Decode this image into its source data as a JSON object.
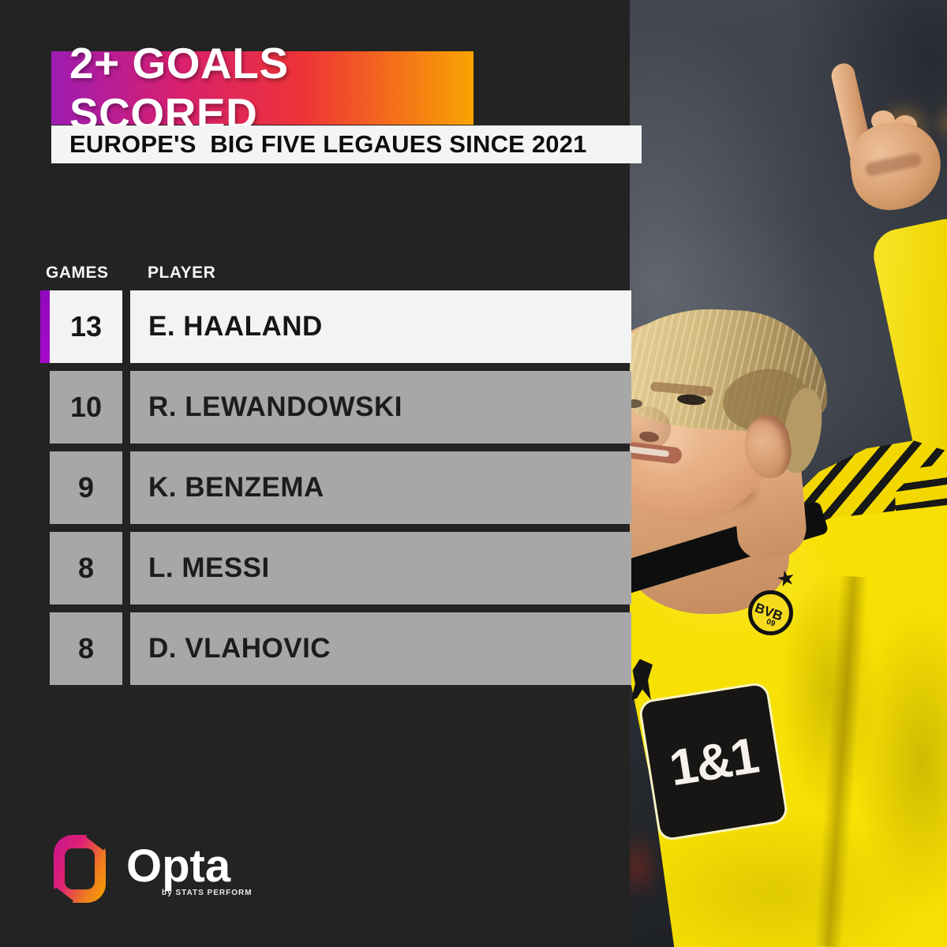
{
  "header": {
    "title": "2+ GOALS SCORED",
    "subtitle": "EUROPE'S  BIG FIVE LEGAUES SINCE 2021"
  },
  "table": {
    "columns": [
      "GAMES",
      "PLAYER"
    ],
    "rows": [
      {
        "games": "13",
        "player": "E. HAALAND"
      },
      {
        "games": "10",
        "player": "R. LEWANDOWSKI"
      },
      {
        "games": "9",
        "player": "K. BENZEMA"
      },
      {
        "games": "8",
        "player": "L. MESSI"
      },
      {
        "games": "8",
        "player": "D. VLAHOVIC"
      }
    ],
    "highlighted_player": "E. HAALAND"
  },
  "branding": {
    "logo_text": "Opta",
    "logo_subtext": "by STATS PERFORM"
  },
  "photo": {
    "shirt_sponsor": "1&1",
    "badge_letters": "BVB",
    "badge_number": "09",
    "club_star": "★"
  },
  "colors": {
    "background": "#232323",
    "title_gradient_start": "#9e1cb3",
    "title_gradient_mid": "#ee3436",
    "title_gradient_end": "#f9a402",
    "accent_purple": "#9a06c4",
    "highlight_row_bg": "#f3f3f5",
    "row_bg": "#a7a7a7",
    "subtitle_bg": "#f4f4f4",
    "shirt_yellow": "#f7e003"
  },
  "chart_data": {
    "type": "table",
    "title": "2+ GOALS SCORED",
    "subtitle": "EUROPE'S  BIG FIVE LEGAUES SINCE 2021",
    "columns": [
      "GAMES",
      "PLAYER"
    ],
    "rows": [
      [
        13,
        "E. HAALAND"
      ],
      [
        10,
        "R. LEWANDOWSKI"
      ],
      [
        9,
        "K. BENZEMA"
      ],
      [
        8,
        "L. MESSI"
      ],
      [
        8,
        "D. VLAHOVIC"
      ]
    ],
    "highlighted_row": 0,
    "grid": false,
    "legend_position": "none"
  }
}
